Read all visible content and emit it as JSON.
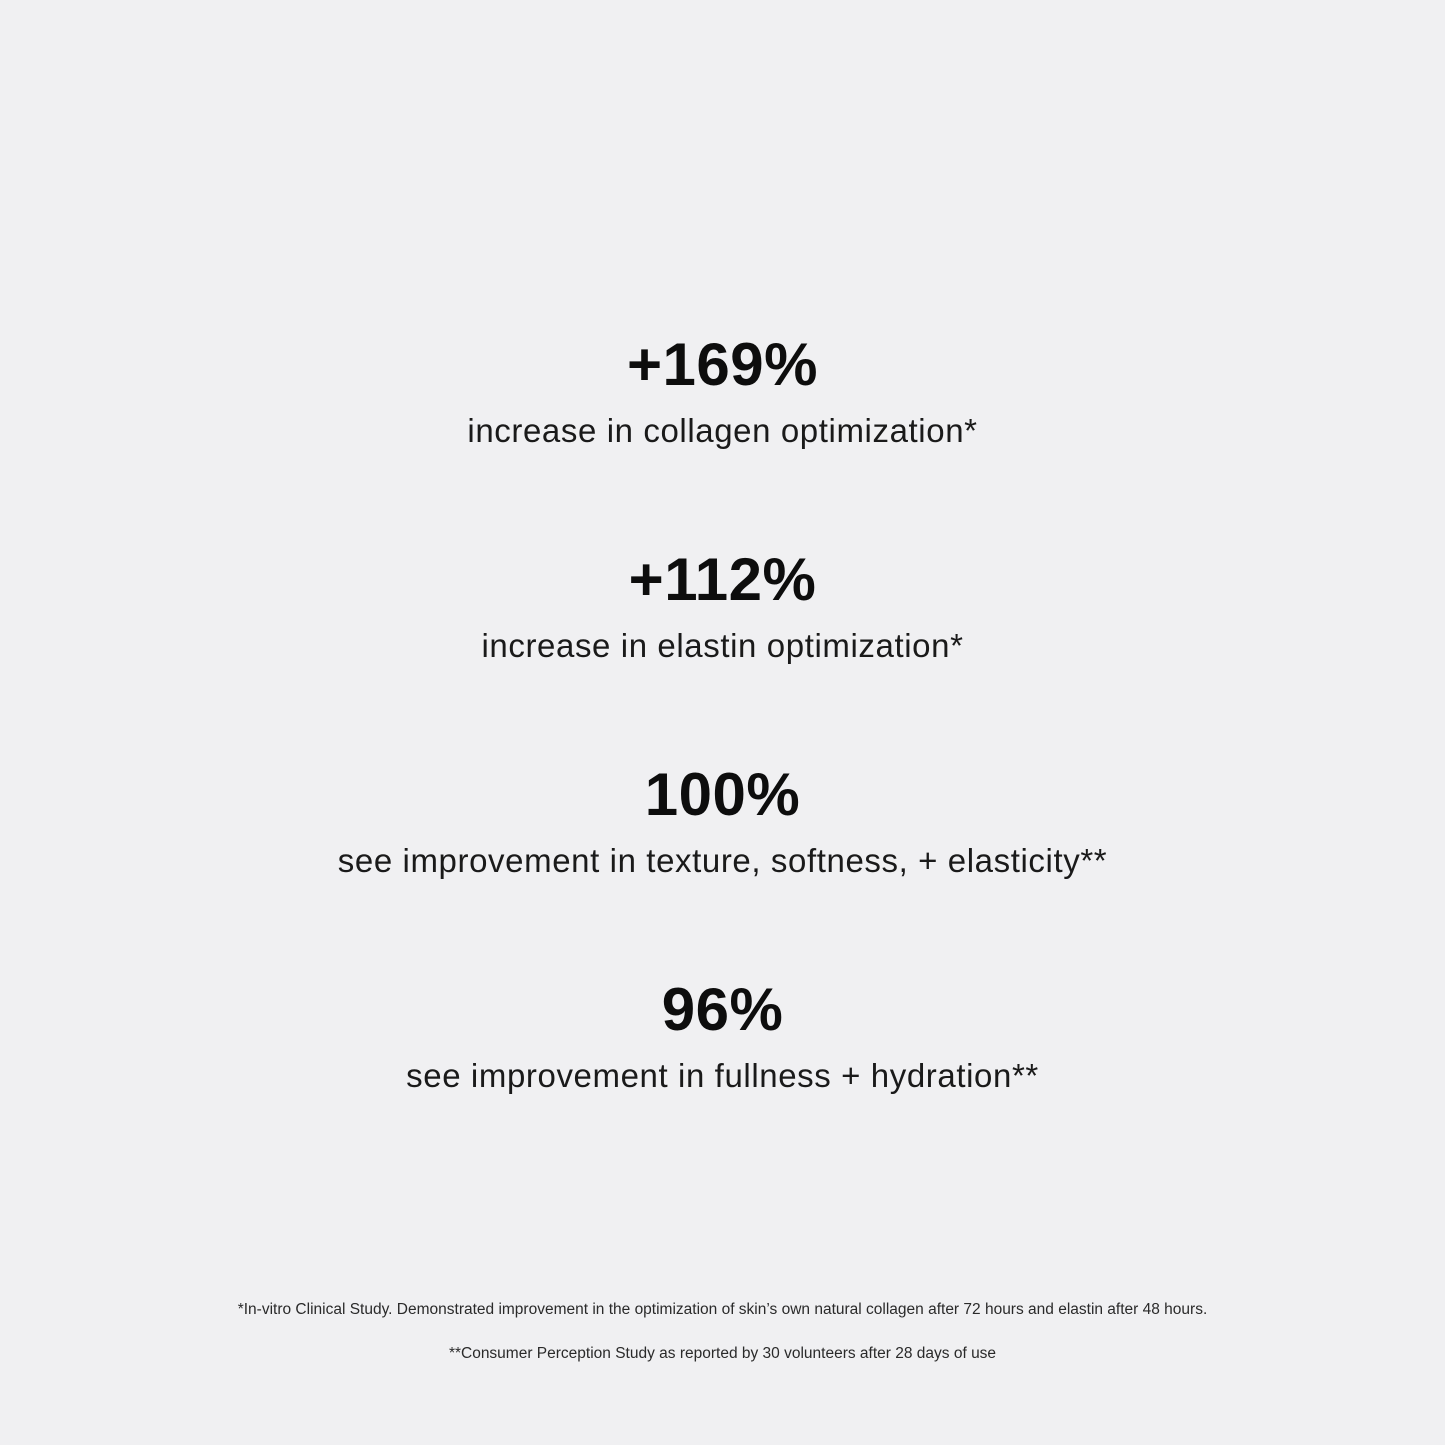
{
  "stats": [
    {
      "value": "+169%",
      "description": "increase in collagen optimization*"
    },
    {
      "value": "+112%",
      "description": "increase in elastin optimization*"
    },
    {
      "value": "100%",
      "description": "see improvement in texture, softness, + elasticity**"
    },
    {
      "value": "96%",
      "description": "see improvement in fullness + hydration**"
    }
  ],
  "footnotes": [
    "*In-vitro Clinical Study. Demonstrated improvement in the optimization of skin’s own natural collagen after 72 hours and elastin after 48 hours.",
    "**Consumer Perception Study as reported by 30 volunteers after 28 days of use"
  ],
  "colors": {
    "background": "#f0f0f2",
    "text": "#111111"
  }
}
